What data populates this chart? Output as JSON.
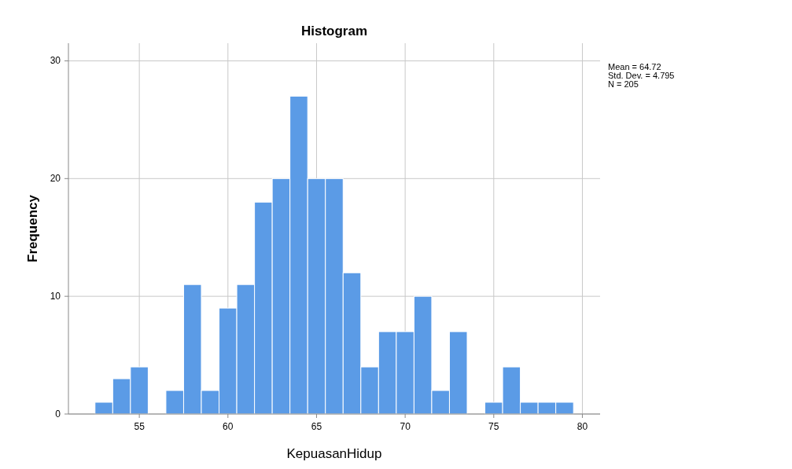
{
  "chart_data": {
    "type": "histogram",
    "title": "Histogram",
    "xlabel": "KepuasanHidup",
    "ylabel": "Frequency",
    "bins": [
      52.5,
      53.5,
      54.5,
      55.5,
      56.5,
      57.5,
      58.5,
      59.5,
      60.5,
      61.5,
      62.5,
      63.5,
      64.5,
      65.5,
      66.5,
      67.5,
      68.5,
      69.5,
      70.5,
      71.5,
      72.5,
      73.5,
      74.5,
      75.5,
      76.5,
      77.5,
      78.5,
      79.5
    ],
    "values": [
      1,
      3,
      4,
      0,
      2,
      11,
      2,
      9,
      11,
      18,
      20,
      27,
      20,
      20,
      12,
      4,
      7,
      7,
      10,
      2,
      7,
      0,
      1,
      4,
      1,
      1,
      1
    ],
    "color": "#5b9be6",
    "xlim": [
      51,
      81
    ],
    "xticks": [
      55,
      60,
      65,
      70,
      75,
      80
    ],
    "ylim": [
      0,
      31.5
    ],
    "yticks": [
      0,
      10,
      20,
      30
    ],
    "grid": true,
    "annotations": [
      "Mean = 64.72",
      "Std. Dev. = 4.795",
      "N = 205"
    ]
  }
}
